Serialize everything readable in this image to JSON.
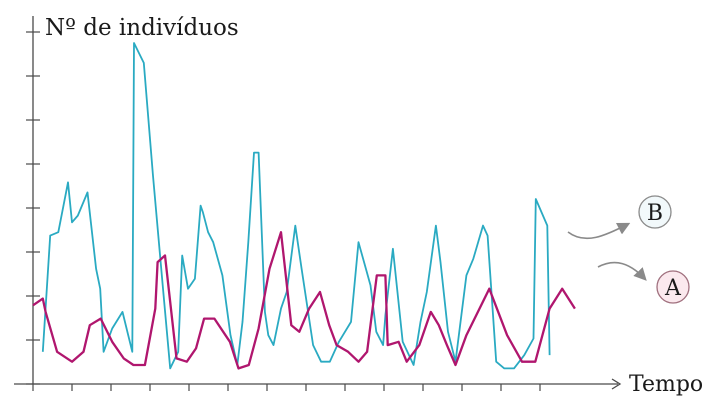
{
  "chart_data": {
    "type": "line",
    "ylabel": "Nº de indivíduos",
    "xlabel": "Tempo",
    "x_ticks": 14,
    "y_ticks": 9,
    "xlim": [
      0,
      100
    ],
    "ylim": [
      0,
      100
    ],
    "grid": false,
    "legend": "right, circled letters with arrows",
    "colors": {
      "A": "#b0166e",
      "B": "#2aaac2",
      "axis": "#4a4a4a",
      "pointer": "#8a8a8a",
      "circle_A_fill": "#fbe9ee"
    },
    "series": [
      {
        "name": "A",
        "x": [
          0,
          1.7,
          2.2,
          4.2,
          6.8,
          8.8,
          9.9,
          11.8,
          13.8,
          15.8,
          17.5,
          19.5,
          21.3,
          21.7,
          23,
          25,
          26.8,
          28.4,
          29.8,
          31.6,
          34.3,
          35.8,
          37.6,
          39.3,
          41.2,
          43.2,
          45,
          46.4,
          48.1,
          50,
          51.6,
          52.9,
          54.9,
          56.7,
          58.2,
          59.9,
          61.4,
          61.8,
          63.7,
          65.1,
          67.3,
          69.3,
          70.7,
          72.1,
          73.6,
          75.5,
          79.5,
          82.6,
          85.2,
          87.5,
          90,
          92.2,
          94.4
        ],
        "values": [
          21,
          23,
          19,
          7,
          4,
          7,
          15,
          17,
          10,
          5,
          3,
          3,
          20,
          34,
          36,
          5,
          4,
          8,
          17,
          17,
          10,
          2,
          3,
          14,
          32,
          43,
          15,
          13,
          20,
          25,
          15,
          9,
          7,
          4,
          7,
          30,
          30,
          9,
          10,
          4,
          9,
          19,
          15,
          9,
          3,
          12,
          26,
          12,
          4,
          4,
          20,
          26,
          20
        ]
      },
      {
        "name": "B",
        "x": [
          1.7,
          3,
          4.4,
          6.1,
          6.8,
          7.8,
          9.5,
          11,
          11.7,
          12.3,
          13.8,
          15.6,
          17.3,
          17.6,
          19.3,
          20.9,
          22.7,
          23.9,
          25.3,
          26,
          27,
          28.2,
          29.2,
          29.6,
          30.5,
          31.4,
          33,
          34.4,
          35.6,
          36.5,
          37.5,
          38.5,
          39.3,
          40.4,
          41,
          41.9,
          43.2,
          44.2,
          45.7,
          46.8,
          48.8,
          50.2,
          51.7,
          53.3,
          55.4,
          56.7,
          58,
          58.8,
          59.8,
          61,
          61.4,
          62.7,
          64.4,
          66.3,
          67.5,
          68.6,
          70.2,
          71,
          72.3,
          73.6,
          75.5,
          76.7,
          78.4,
          79.2,
          80.7,
          82.1,
          83.8,
          85.6,
          87.2,
          87.6,
          89.6,
          90
        ],
        "values": [
          7,
          42,
          43,
          58,
          46,
          48,
          55,
          32,
          26,
          7,
          14,
          19,
          7,
          100,
          94,
          60,
          25,
          2,
          7,
          36,
          26,
          29,
          51,
          49,
          43,
          40,
          30,
          12,
          3,
          16,
          40,
          67,
          67,
          19,
          12,
          9,
          20,
          25,
          45,
          32,
          9,
          4,
          4,
          10,
          16,
          40,
          32,
          27,
          13,
          9,
          18,
          38,
          10,
          3,
          16,
          25,
          45,
          34,
          13,
          4,
          30,
          35,
          45,
          42,
          4,
          2,
          2,
          6,
          11,
          53,
          45,
          6
        ]
      }
    ]
  }
}
